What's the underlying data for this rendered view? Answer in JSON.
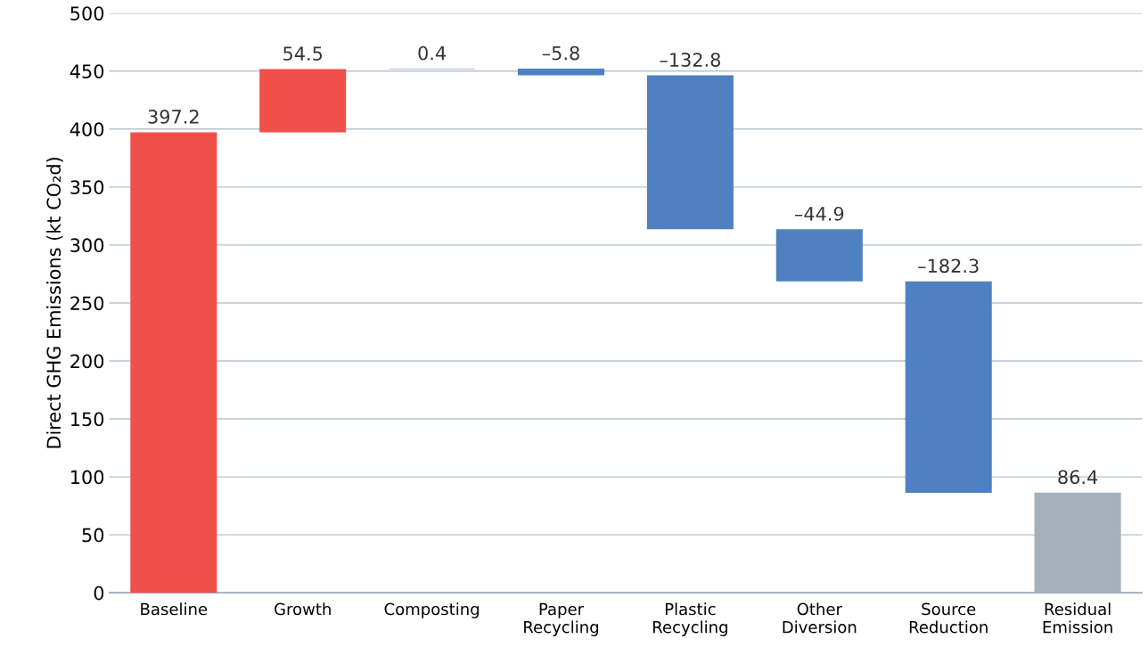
{
  "chart_data": {
    "type": "bar",
    "ylabel": "Direct GHG Emissions (kt CO₂d)",
    "categories": [
      "Baseline",
      "Growth",
      "Composting",
      "Paper\nRecycling",
      "Plastic\nRecycling",
      "Other\nDiversion",
      "Source\nReduction",
      "Residual\nEmission"
    ],
    "values": [
      397.2,
      54.5,
      0.4,
      -5.8,
      -132.8,
      -44.9,
      -182.3,
      86.4
    ],
    "base": [
      0,
      397.2,
      451.7,
      452.1,
      446.3,
      313.5,
      268.6,
      0
    ],
    "colors": [
      "#f0504a",
      "#f0504a",
      "#4f81c2",
      "#4f81c2",
      "#4f81c2",
      "#4f81c2",
      "#4f81c2",
      "#a5b0b8"
    ],
    "value_labels": [
      "397.2",
      "54.5",
      "0.4",
      "–5.8",
      "–132.8",
      "–44.9",
      "–182.3",
      "86.4"
    ],
    "ylim": [
      0,
      500
    ],
    "yticks": [
      0,
      50,
      100,
      150,
      200,
      250,
      300,
      350,
      400,
      450,
      500
    ],
    "grid": "y"
  }
}
